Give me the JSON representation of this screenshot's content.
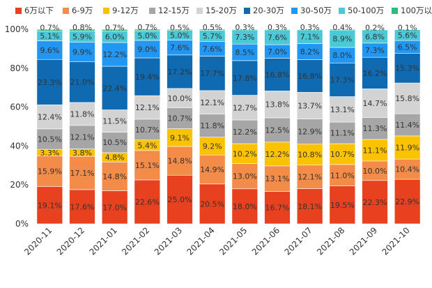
{
  "chart_data": {
    "type": "bar",
    "stacked": "percent",
    "title": "",
    "xlabel": "",
    "ylabel": "",
    "ylim": [
      0,
      100
    ],
    "y_ticks": [
      "0%",
      "20%",
      "40%",
      "60%",
      "80%",
      "100%"
    ],
    "legend_position": "top",
    "grid": false,
    "categories": [
      "2020-11",
      "2020-12",
      "2021-01",
      "2021-02",
      "2021-03",
      "2021-04",
      "2021-05",
      "2021-06",
      "2021-07",
      "2021-08",
      "2021-09",
      "2021-10"
    ],
    "series": [
      {
        "name": "6万以下",
        "color": "#E8411F",
        "values": [
          19.1,
          17.6,
          17.0,
          22.6,
          25.0,
          20.5,
          18.0,
          16.7,
          18.1,
          19.5,
          22.3,
          22.9
        ]
      },
      {
        "name": "6-9万",
        "color": "#F28C48",
        "values": [
          15.9,
          17.1,
          14.8,
          15.1,
          14.8,
          14.9,
          13.0,
          13.1,
          12.1,
          11.0,
          10.0,
          10.4
        ]
      },
      {
        "name": "9-12万",
        "color": "#FBC201",
        "values": [
          3.3,
          3.8,
          4.8,
          5.4,
          9.1,
          9.2,
          10.2,
          12.2,
          10.8,
          10.7,
          11.1,
          11.9
        ]
      },
      {
        "name": "12-15万",
        "color": "#A6A6A6",
        "values": [
          10.5,
          12.1,
          10.5,
          10.7,
          10.7,
          11.8,
          12.2,
          12.5,
          12.9,
          11.1,
          11.3,
          11.4
        ]
      },
      {
        "name": "15-20万",
        "color": "#D3D3D3",
        "values": [
          12.4,
          11.8,
          11.5,
          12.1,
          10.0,
          12.1,
          12.7,
          13.8,
          13.7,
          13.1,
          14.7,
          15.8
        ]
      },
      {
        "name": "20-30万",
        "color": "#0F6AB1",
        "values": [
          23.3,
          21.0,
          22.4,
          19.4,
          17.2,
          17.7,
          17.8,
          16.8,
          16.8,
          17.3,
          16.2,
          15.3
        ]
      },
      {
        "name": "30-50万",
        "color": "#2196F3",
        "values": [
          9.6,
          9.9,
          12.2,
          9.0,
          7.6,
          7.6,
          8.5,
          7.0,
          8.2,
          8.0,
          7.3,
          6.5
        ]
      },
      {
        "name": "50-100万",
        "color": "#4CC9D6",
        "values": [
          5.1,
          5.9,
          6.0,
          5.0,
          5.0,
          5.7,
          7.3,
          7.6,
          7.1,
          8.9,
          6.8,
          5.6
        ]
      },
      {
        "name": "100万以上",
        "color": "#2EBB7A",
        "values": [
          0.7,
          0.8,
          0.7,
          0.7,
          0.5,
          0.5,
          0.3,
          0.3,
          0.3,
          0.4,
          0.2,
          0.1
        ]
      }
    ]
  }
}
